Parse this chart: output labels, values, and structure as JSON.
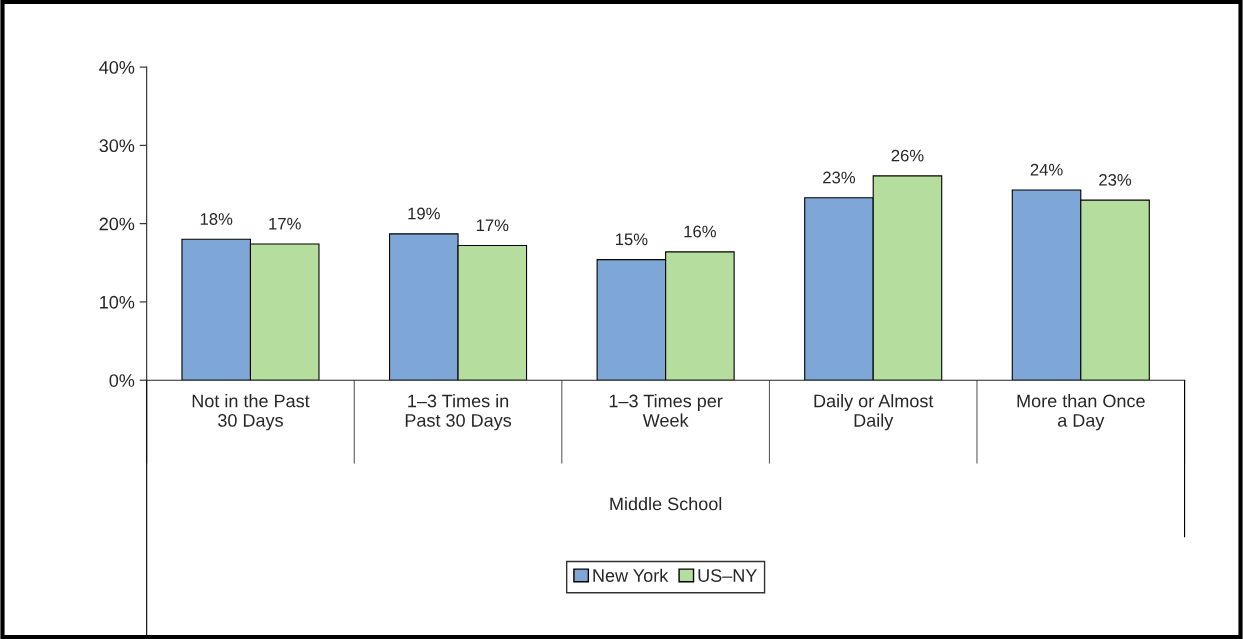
{
  "chart_data": {
    "type": "bar",
    "categories": [
      "Not in the Past\n30 Days",
      "1–3 Times in\nPast 30 Days",
      "1–3 Times per\nWeek",
      "Daily or Almost\nDaily",
      "More than Once\na Day"
    ],
    "xlabel": "Middle School",
    "series": [
      {
        "name": "New York",
        "color": "#7ea6d6",
        "values": [
          18.0,
          18.7,
          15.4,
          23.3,
          24.3
        ],
        "value_labels": [
          "18%",
          "19%",
          "15%",
          "23%",
          "24%"
        ]
      },
      {
        "name": "US–NY",
        "color": "#b5dd9e",
        "values": [
          17.4,
          17.2,
          16.4,
          26.1,
          23.0
        ],
        "value_labels": [
          "17%",
          "17%",
          "16%",
          "26%",
          "23%"
        ]
      }
    ],
    "ylim": [
      0,
      40
    ],
    "yticks": [
      {
        "value": 0,
        "label": "0%"
      },
      {
        "value": 10,
        "label": "10%"
      },
      {
        "value": 20,
        "label": "20%"
      },
      {
        "value": 30,
        "label": "30%"
      },
      {
        "value": 40,
        "label": "40%"
      }
    ],
    "grid": false,
    "legend": "bottom"
  }
}
